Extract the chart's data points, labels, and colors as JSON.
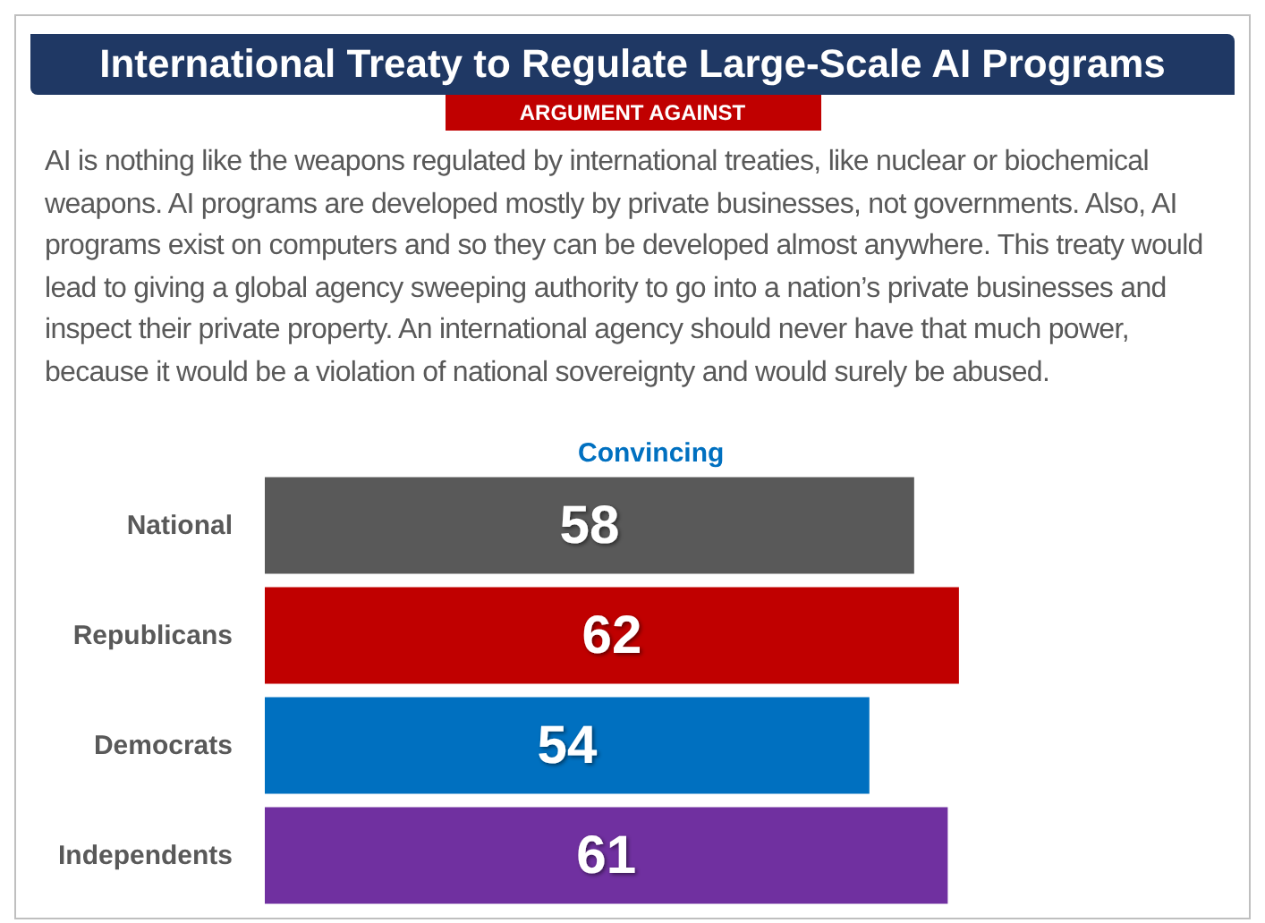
{
  "chart_data": {
    "type": "bar",
    "orientation": "horizontal",
    "title": "International Treaty to Regulate Large-Scale AI Programs",
    "subtitle": "ARGUMENT AGAINST",
    "annotations": [
      "AI is nothing like the weapons regulated by international treaties, like nuclear or biochemical weapons. AI programs are developed mostly by private businesses, not governments. Also, AI programs exist on computers and so they can be developed almost anywhere. This treaty would lead to giving a global agency sweeping authority to go into a nation’s private businesses and inspect their private property. An international agency should never have that much power, because it would be a violation of national sovereignty and would surely be abused."
    ],
    "xlabel": "Convincing",
    "categories": [
      "National",
      "Republicans",
      "Democrats",
      "Independents"
    ],
    "values": [
      58,
      62,
      54,
      61
    ],
    "colors": [
      "#595959",
      "#c00000",
      "#0070c0",
      "#7030a0"
    ],
    "data_labels": true
  }
}
